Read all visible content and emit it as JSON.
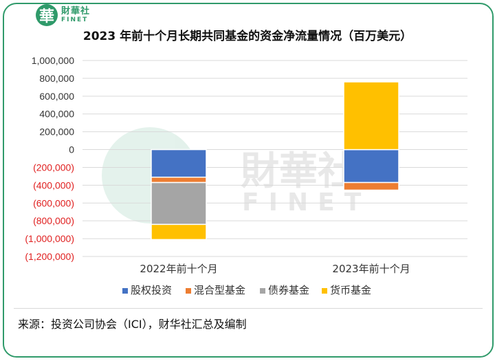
{
  "header": {
    "logo_mark": "華",
    "logo_cn": "財華社",
    "logo_en": "FINET"
  },
  "watermark": {
    "cn": "財華社",
    "en": "FINET"
  },
  "footer": {
    "source": "来源：投资公司协会（ICI），财华社汇总及编制"
  },
  "colors": {
    "border": "#2f9a6a",
    "negative_tick": "#e02020",
    "equity": "#4472c4",
    "hybrid": "#ed7d31",
    "bond": "#a5a5a5",
    "money_market": "#ffc000"
  },
  "chart_data": {
    "type": "bar",
    "stacked": true,
    "title": "2023 年前十个月长期共同基金的资金净流量情况（百万美元）",
    "categories": [
      "2022年前十个月",
      "2023年前十个月"
    ],
    "series": [
      {
        "name": "股权投资",
        "values": [
          -310000,
          -370000
        ]
      },
      {
        "name": "混合型基金",
        "values": [
          -60000,
          -85000
        ]
      },
      {
        "name": "债券基金",
        "values": [
          -470000,
          0
        ]
      },
      {
        "name": "货币基金",
        "values": [
          -170000,
          760000
        ]
      }
    ],
    "ylim": [
      -1200000,
      1000000
    ],
    "yticks": [
      1000000,
      800000,
      600000,
      400000,
      200000,
      0,
      -200000,
      -400000,
      -600000,
      -800000,
      -1000000,
      -1200000
    ],
    "ytick_labels": [
      "1,000,000",
      "800,000",
      "600,000",
      "400,000",
      "200,000",
      "0",
      "(200,000)",
      "(400,000)",
      "(600,000)",
      "(800,000)",
      "(1,000,000)",
      "(1,200,000)"
    ],
    "grid": true,
    "legend_position": "bottom"
  }
}
